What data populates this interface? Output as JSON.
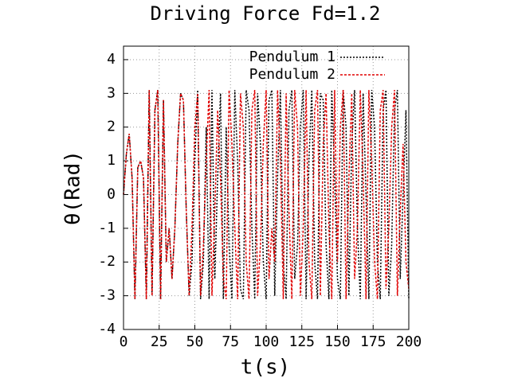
{
  "chart_data": {
    "type": "line",
    "title": "Driving Force Fd=1.2",
    "xlabel": "t(s)",
    "ylabel": "θ(Rad)",
    "xlim": [
      0,
      200
    ],
    "ylim": [
      -4,
      4.4
    ],
    "xticks": [
      0,
      25,
      50,
      75,
      100,
      125,
      150,
      175,
      200
    ],
    "yticks": [
      -4,
      -3,
      -2,
      -1,
      0,
      1,
      2,
      3,
      4
    ],
    "grid": true,
    "legend": "top-right",
    "x": [
      0,
      2,
      4,
      6,
      8,
      10,
      12,
      14,
      16,
      18,
      20,
      22,
      24,
      26,
      28,
      30,
      32,
      34,
      36,
      38,
      40,
      42,
      44,
      46,
      48,
      50,
      52,
      54,
      56,
      58,
      60,
      62,
      64,
      66,
      68,
      70,
      72,
      74,
      76,
      78,
      80,
      82,
      84,
      86,
      88,
      90,
      92,
      94,
      96,
      98,
      100,
      102,
      104,
      106,
      108,
      110,
      112,
      114,
      116,
      118,
      120,
      122,
      124,
      126,
      128,
      130,
      132,
      134,
      136,
      138,
      140,
      142,
      144,
      146,
      148,
      150,
      152,
      154,
      156,
      158,
      160,
      162,
      164,
      166,
      168,
      170,
      172,
      174,
      176,
      178,
      180,
      182,
      184,
      186,
      188,
      190,
      192,
      194,
      196,
      198,
      200
    ],
    "series": [
      {
        "name": "Pendulum 1",
        "color": "#000000",
        "values": [
          0,
          1.2,
          1.8,
          0.5,
          -3.1,
          0.8,
          1.0,
          0.5,
          -3.1,
          3.1,
          -3.0,
          2.5,
          3.1,
          -3.1,
          2.8,
          -2.0,
          -1.0,
          -2.5,
          -1.0,
          1.5,
          3.0,
          2.8,
          -0.5,
          -3.0,
          -2.0,
          1.0,
          3.1,
          -3.1,
          -2.0,
          2.0,
          -3.1,
          3.1,
          -2.5,
          0.5,
          3.0,
          -3.1,
          2.0,
          -1.5,
          -3.1,
          3.1,
          1.0,
          -2.8,
          -3.1,
          3.1,
          2.5,
          -1.0,
          -3.1,
          3.0,
          1.5,
          -2.0,
          -3.1,
          2.8,
          3.1,
          -3.0,
          0.5,
          3.1,
          -2.0,
          -3.1,
          2.5,
          3.1,
          -2.5,
          -1.5,
          2.0,
          3.1,
          -3.1,
          1.0,
          3.1,
          -2.0,
          -3.1,
          3.0,
          2.8,
          -1.5,
          -3.1,
          3.1,
          0.5,
          -2.5,
          -3.1,
          3.1,
          2.0,
          -3.0,
          1.5,
          3.1,
          -1.0,
          -3.1,
          3.0,
          0.0,
          -3.1,
          3.1,
          2.0,
          -2.0,
          -3.1,
          2.5,
          3.1,
          -3.0,
          -1.5,
          2.5,
          3.1,
          -2.5,
          0.0,
          2.5,
          -3.1
        ]
      },
      {
        "name": "Pendulum 2",
        "color": "#e00000",
        "values": [
          0,
          1.2,
          1.8,
          0.5,
          -3.1,
          0.8,
          1.0,
          0.5,
          -3.1,
          3.1,
          -3.0,
          2.5,
          3.1,
          -3.1,
          2.8,
          -2.0,
          -1.0,
          -2.5,
          -1.0,
          1.5,
          3.0,
          2.8,
          -0.5,
          -3.0,
          -1.0,
          2.0,
          3.0,
          -3.0,
          -1.5,
          1.0,
          3.1,
          -3.0,
          -0.5,
          2.5,
          0.5,
          -2.5,
          -3.1,
          3.1,
          1.5,
          -1.0,
          -3.1,
          3.0,
          2.0,
          -2.0,
          -3.1,
          2.5,
          3.1,
          -3.0,
          -1.5,
          1.5,
          3.1,
          -2.5,
          -1.0,
          -2.0,
          3.1,
          1.0,
          -3.1,
          3.0,
          -0.5,
          -3.1,
          3.1,
          2.0,
          -3.0,
          -1.0,
          3.1,
          -2.0,
          -3.1,
          2.5,
          3.1,
          -3.0,
          1.5,
          3.0,
          -1.0,
          -3.1,
          3.1,
          -2.0,
          2.0,
          3.1,
          -3.1,
          0.5,
          3.0,
          -2.5,
          -1.0,
          3.1,
          0.5,
          -3.1,
          3.1,
          1.0,
          -2.0,
          -3.1,
          2.5,
          3.1,
          -2.8,
          -1.0,
          2.0,
          3.1,
          -3.0,
          -0.5,
          1.5,
          -2.0,
          -2.8
        ]
      }
    ]
  }
}
